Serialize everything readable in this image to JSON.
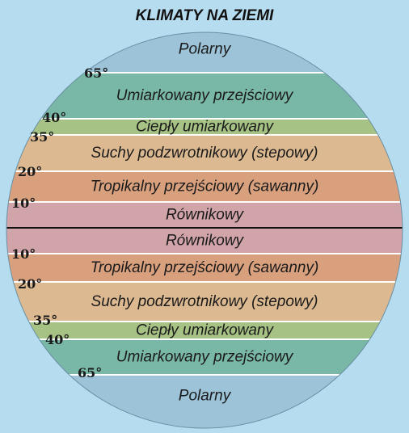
{
  "title": "KLIMATY NA ZIEMI",
  "colors": {
    "background": "#b6dcef",
    "polar": "#9cc3d8",
    "temperate_transitional": "#79b7a6",
    "warm_temperate": "#a6c285",
    "dry_subtropical": "#dcb990",
    "tropical_transitional": "#d9a07e",
    "equatorial": "#d0a4a8",
    "separator": "#ffffff",
    "equator_line": "#111111"
  },
  "zones_north": [
    {
      "label": "Polarny",
      "color_key": "polar"
    },
    {
      "label": "Umiarkowany przejściowy",
      "color_key": "temperate_transitional"
    },
    {
      "label": "Ciepły umiarkowany",
      "color_key": "warm_temperate"
    },
    {
      "label": "Suchy podzwrotnikowy (stepowy)",
      "color_key": "dry_subtropical"
    },
    {
      "label": "Tropikalny przejściowy (sawanny)",
      "color_key": "tropical_transitional"
    },
    {
      "label": "Równikowy",
      "color_key": "equatorial"
    }
  ],
  "zones_south": [
    {
      "label": "Równikowy",
      "color_key": "equatorial"
    },
    {
      "label": "Tropikalny przejściowy (sawanny)",
      "color_key": "tropical_transitional"
    },
    {
      "label": "Suchy podzwrotnikowy (stepowy)",
      "color_key": "dry_subtropical"
    },
    {
      "label": "Ciepły umiarkowany",
      "color_key": "warm_temperate"
    },
    {
      "label": "Umiarkowany przejściowy",
      "color_key": "temperate_transitional"
    },
    {
      "label": "Polarny",
      "color_key": "polar"
    }
  ],
  "latitudes_north": [
    "65°",
    "40°",
    "35°",
    "20°",
    "10°"
  ],
  "latitudes_south": [
    "10°",
    "20°",
    "35°",
    "40°",
    "65°"
  ]
}
